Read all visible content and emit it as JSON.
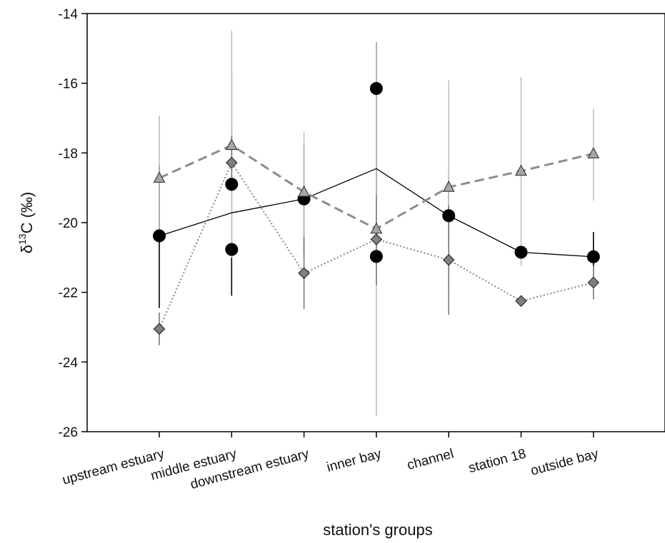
{
  "chart_data": {
    "type": "line",
    "xlabel": "station's groups",
    "ylabel": "δ13C (‰)",
    "ylabel_parts": {
      "symbol": "δ",
      "superscript": "13",
      "rest": "C (‰)"
    },
    "categories": [
      "upstream estuary",
      "middle estuary",
      "downstream estuary",
      "inner bay",
      "channel",
      "station 18",
      "outside bay"
    ],
    "ylim": [
      -26,
      -14
    ],
    "yticks": [
      -26,
      -24,
      -22,
      -20,
      -18,
      -16,
      -14
    ],
    "ytick_labels": [
      "-26",
      "-24",
      "-22",
      "-20",
      "-18",
      "-16",
      "-14"
    ],
    "grid": false,
    "legend": "none",
    "series": [
      {
        "marker": "circle",
        "line_style": "solid",
        "color": "#000000",
        "fill": "#000000",
        "points": [
          {
            "category": "upstream estuary",
            "y": -20.38,
            "err_low": -22.45,
            "err_high": -18.35
          },
          {
            "category": "middle estuary",
            "y": -20.77
          },
          {
            "category": "middle estuary",
            "y": -18.9,
            "err_low": -22.1,
            "err_high": -15.7
          },
          {
            "category": "downstream estuary",
            "y": -19.32,
            "err_low": -20.9,
            "err_high": -17.78
          },
          {
            "category": "inner bay",
            "y": -16.15,
            "err_low": -19.2,
            "err_high": -14.82
          },
          {
            "category": "inner bay",
            "y": -20.97
          },
          {
            "category": "channel",
            "y": -19.8,
            "err_low": -20.6,
            "err_high": -18.6
          },
          {
            "category": "station 18",
            "y": -20.85
          },
          {
            "category": "outside bay",
            "y": -20.98,
            "err_low": -21.7,
            "err_high": -20.27
          }
        ],
        "line": [
          {
            "category": "upstream estuary",
            "y": -20.38
          },
          {
            "category": "middle estuary",
            "y": -19.72
          },
          {
            "category": "downstream estuary",
            "y": -19.32
          },
          {
            "category": "inner bay",
            "y": -18.45
          },
          {
            "category": "channel",
            "y": -19.8
          },
          {
            "category": "station 18",
            "y": -20.85
          },
          {
            "category": "outside bay",
            "y": -20.98
          }
        ]
      },
      {
        "marker": "triangle",
        "line_style": "dashed",
        "color": "#8c8c8c",
        "fill": "#a6a6a6",
        "errbar_color": "#c0c0c0",
        "points": [
          {
            "category": "upstream estuary",
            "y": -18.72,
            "err_low": -20.5,
            "err_high": -16.93
          },
          {
            "category": "middle estuary",
            "y": -17.78,
            "err_low": -21.0,
            "err_high": -14.48
          },
          {
            "category": "downstream estuary",
            "y": -19.12,
            "err_low": -20.85,
            "err_high": -17.38
          },
          {
            "category": "inner bay",
            "y": -20.18,
            "err_low": -25.55,
            "err_high": -14.82
          },
          {
            "category": "channel",
            "y": -18.98,
            "err_low": -22.05,
            "err_high": -15.92
          },
          {
            "category": "station 18",
            "y": -18.52,
            "err_low": -21.25,
            "err_high": -15.82
          },
          {
            "category": "outside bay",
            "y": -18.02,
            "err_low": -19.37,
            "err_high": -16.73
          }
        ]
      },
      {
        "marker": "diamond",
        "line_style": "dotted",
        "color": "#7a8a8f",
        "fill": "#808080",
        "errbar_color": "#7a7a7a",
        "points": [
          {
            "category": "upstream estuary",
            "y": -23.05,
            "err_low": -23.52,
            "err_high": -22.58
          },
          {
            "category": "middle estuary",
            "y": -18.28,
            "err_low": -19.1,
            "err_high": -17.5
          },
          {
            "category": "downstream estuary",
            "y": -21.45,
            "err_low": -22.48,
            "err_high": -20.42
          },
          {
            "category": "inner bay",
            "y": -20.48,
            "err_low": -21.8,
            "err_high": -19.2
          },
          {
            "category": "channel",
            "y": -21.07,
            "err_low": -22.65,
            "err_high": -19.5
          },
          {
            "category": "station 18",
            "y": -22.25
          },
          {
            "category": "outside bay",
            "y": -21.72,
            "err_low": -22.2,
            "err_high": -21.25
          }
        ]
      }
    ]
  }
}
